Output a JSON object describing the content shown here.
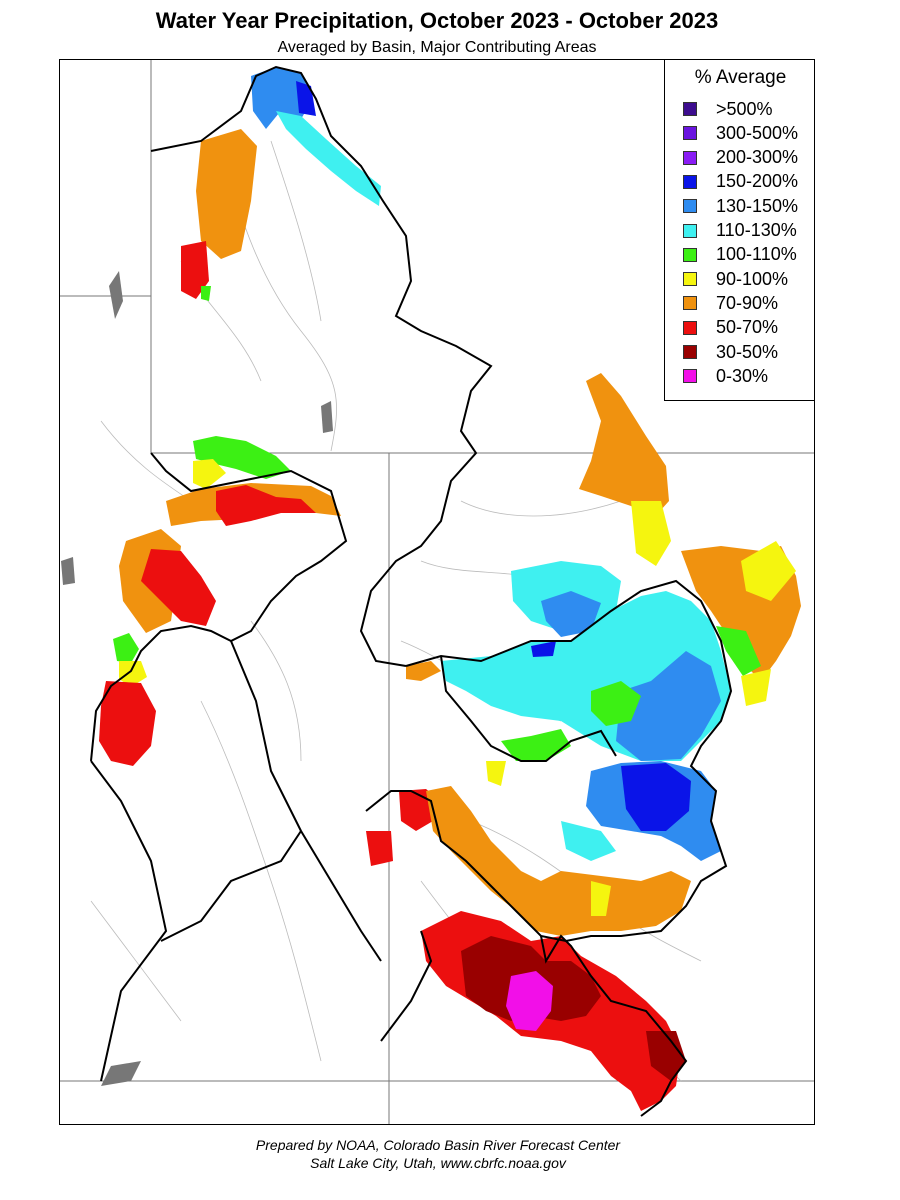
{
  "title": "Water Year Precipitation, October 2023 - October 2023",
  "subtitle": "Averaged by Basin, Major Contributing Areas",
  "legend": {
    "title": "% Average",
    "items": [
      {
        "label": ">500%",
        "color": "#3d0d8f"
      },
      {
        "label": "300-500%",
        "color": "#6a14e0"
      },
      {
        "label": "200-300%",
        "color": "#8a1cf5"
      },
      {
        "label": "150-200%",
        "color": "#0a14e8"
      },
      {
        "label": "130-150%",
        "color": "#2f8cf0"
      },
      {
        "label": "110-130%",
        "color": "#3ff0f0"
      },
      {
        "label": "100-110%",
        "color": "#3cf014"
      },
      {
        "label": "90-100%",
        "color": "#f5f50f"
      },
      {
        "label": "70-90%",
        "color": "#f0920f"
      },
      {
        "label": "50-70%",
        "color": "#ec0f0f"
      },
      {
        "label": "30-50%",
        "color": "#990000"
      },
      {
        "label": "0-30%",
        "color": "#f20fe8"
      }
    ]
  },
  "footer": {
    "line1": "Prepared by NOAA, Colorado Basin River Forecast Center",
    "line2": "Salt Lake City, Utah, www.cbrfc.noaa.gov"
  }
}
